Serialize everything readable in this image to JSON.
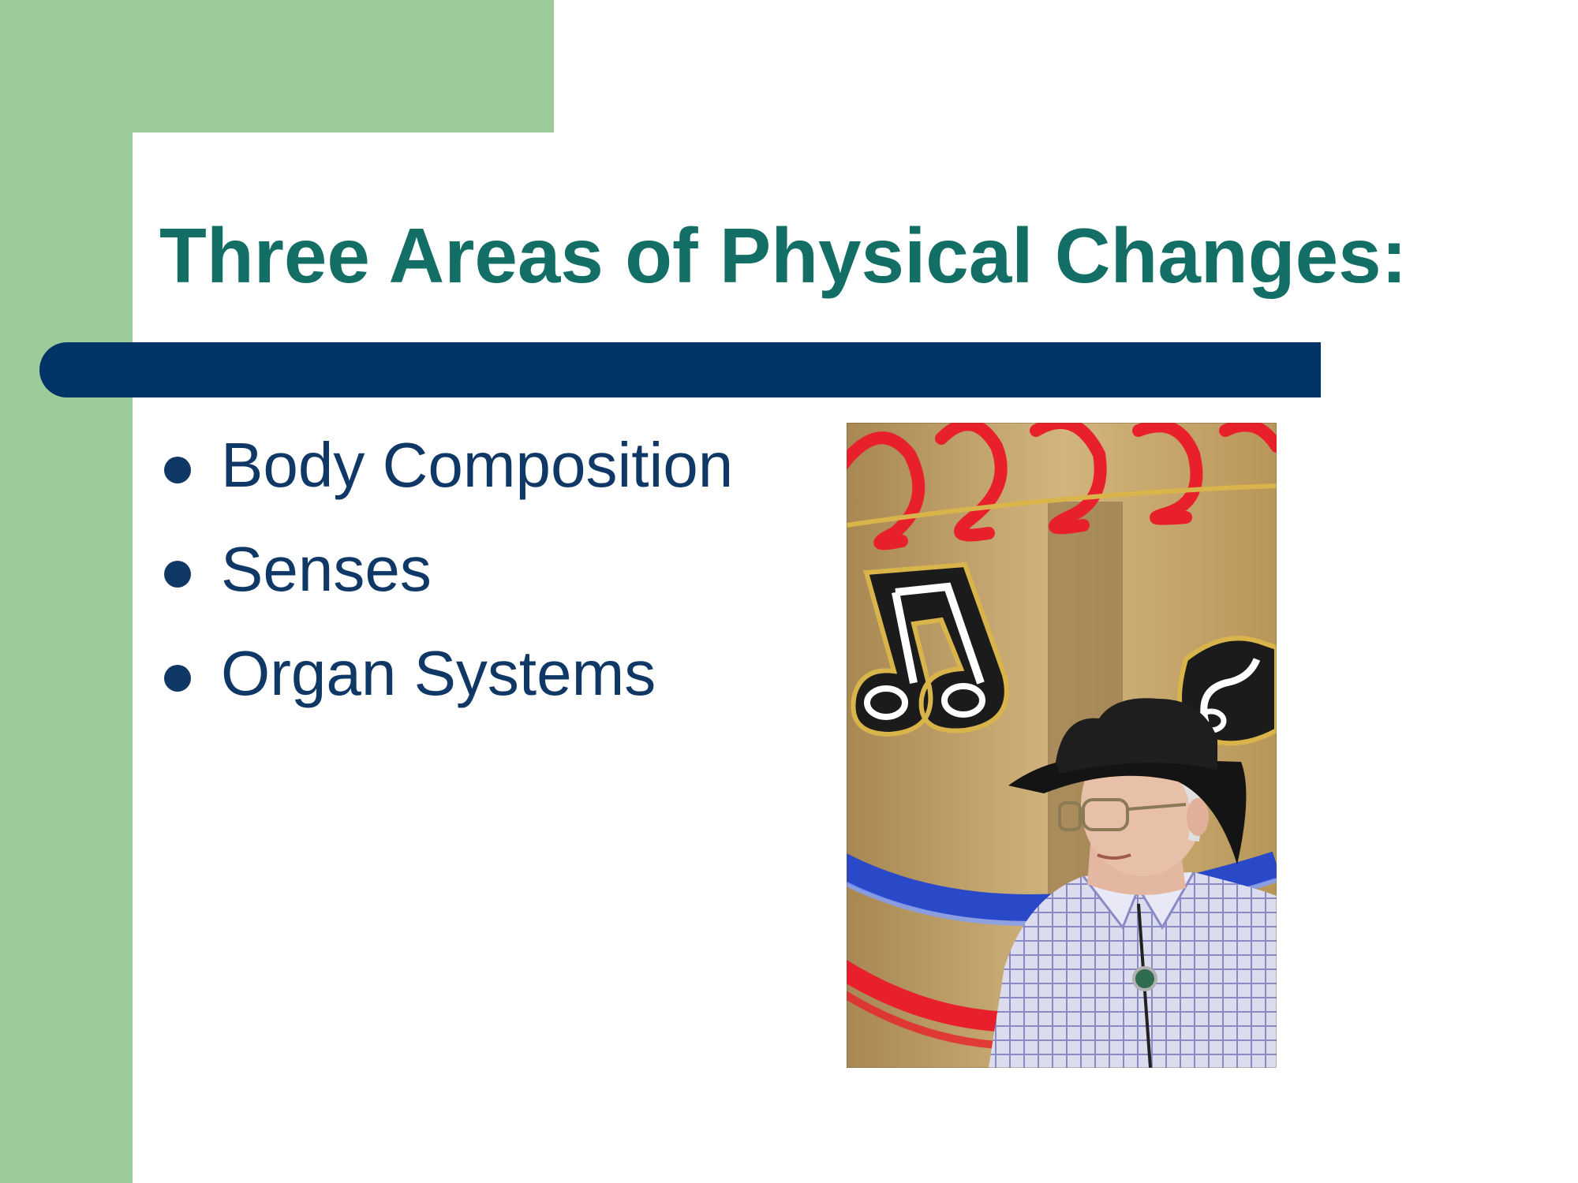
{
  "slide": {
    "title": "Three Areas of Physical Changes:",
    "bullets": [
      "Body Composition",
      "Senses",
      "Organ Systems"
    ]
  },
  "photo": {
    "description_icon": "senior-man-cowboy-hat-jukebox-photo",
    "neon_colors": [
      "#e8202b",
      "#2a49c9"
    ]
  },
  "colors": {
    "title": "#136e65",
    "accent_green": "#9ccc9a",
    "bar_navy": "#003366",
    "bullet_text": "#0f3866"
  }
}
